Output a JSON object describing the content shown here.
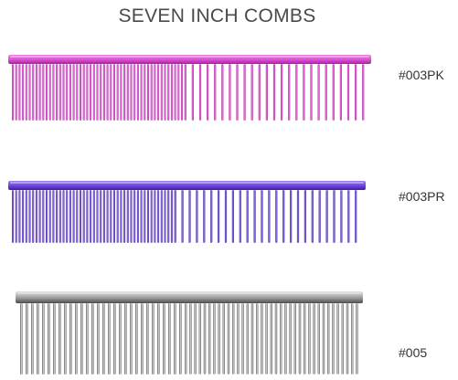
{
  "page": {
    "title": "SEVEN INCH COMBS"
  },
  "combs": [
    {
      "code": "#003PK",
      "color_light": "#ef7fe6",
      "color_mid": "#d94fd0",
      "color_dark": "#a8209f",
      "icon": "pink-comb-icon"
    },
    {
      "code": "#003PR",
      "color_light": "#9a7bf2",
      "color_mid": "#6b44dc",
      "color_dark": "#3d1f9a",
      "icon": "purple-comb-icon"
    },
    {
      "code": "#005",
      "color_light": "#e2e2e2",
      "color_mid": "#9c9c9c",
      "color_dark": "#4d4d4d",
      "icon": "steel-comb-icon"
    }
  ]
}
